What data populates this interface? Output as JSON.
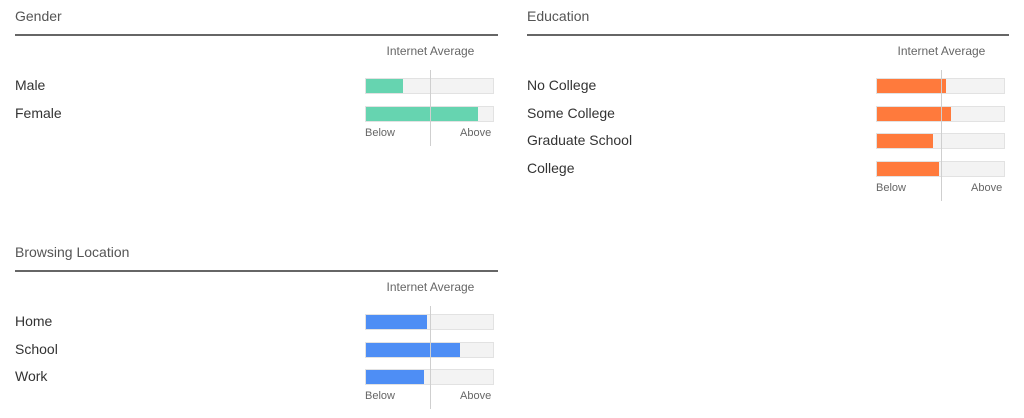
{
  "chart_data": [
    {
      "type": "bar",
      "title": "Gender",
      "reference_label": "Internet Average",
      "axis_low_label": "Below",
      "axis_high_label": "Above",
      "categories": [
        "Male",
        "Female"
      ],
      "values": [
        0.29,
        0.88
      ],
      "average": 0.5,
      "xlim": [
        0,
        1
      ],
      "color": "#66d4b0"
    },
    {
      "type": "bar",
      "title": "Education",
      "reference_label": "Internet Average",
      "axis_low_label": "Below",
      "axis_high_label": "Above",
      "categories": [
        "No College",
        "Some College",
        "Graduate School",
        "College"
      ],
      "values": [
        0.54,
        0.58,
        0.44,
        0.49
      ],
      "average": 0.5,
      "xlim": [
        0,
        1
      ],
      "color": "#ff7a3c"
    },
    {
      "type": "bar",
      "title": "Browsing Location",
      "reference_label": "Internet Average",
      "axis_low_label": "Below",
      "axis_high_label": "Above",
      "categories": [
        "Home",
        "School",
        "Work"
      ],
      "values": [
        0.48,
        0.74,
        0.46
      ],
      "average": 0.5,
      "xlim": [
        0,
        1
      ],
      "color": "#4e8ef5"
    }
  ]
}
